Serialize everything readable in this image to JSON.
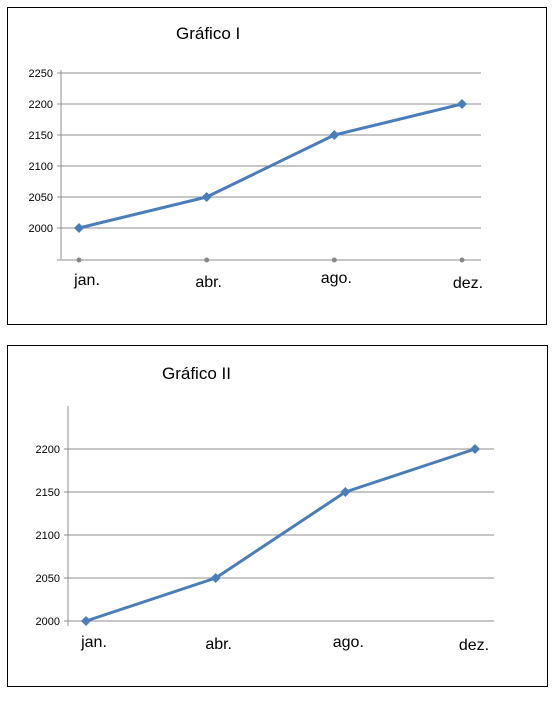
{
  "chart_data": [
    {
      "type": "line",
      "title": "Gráfico I",
      "categories": [
        "jan.",
        "abr.",
        "ago.",
        "dez."
      ],
      "series": [
        {
          "values": [
            2000,
            2050,
            2150,
            2200
          ]
        }
      ],
      "y_ticks": [
        "2000",
        "2050",
        "2100",
        "2150",
        "2200",
        "2250"
      ],
      "ylim": [
        1950,
        2250
      ],
      "grid": true,
      "legend": "none",
      "colors": {
        "line": "#4A7EBB",
        "grid": "#8c8c8c",
        "axis": "#8c8c8c"
      }
    },
    {
      "type": "line",
      "title": "Gráfico II",
      "categories": [
        "jan.",
        "abr.",
        "ago.",
        "dez."
      ],
      "series": [
        {
          "values": [
            2000,
            2050,
            2150,
            2200
          ]
        }
      ],
      "y_ticks": [
        "2000",
        "2050",
        "2100",
        "2150",
        "2200"
      ],
      "ylim": [
        2000,
        2250
      ],
      "grid": true,
      "legend": "none",
      "colors": {
        "line": "#4A7EBB",
        "grid": "#8c8c8c",
        "axis": "#8c8c8c"
      }
    }
  ]
}
